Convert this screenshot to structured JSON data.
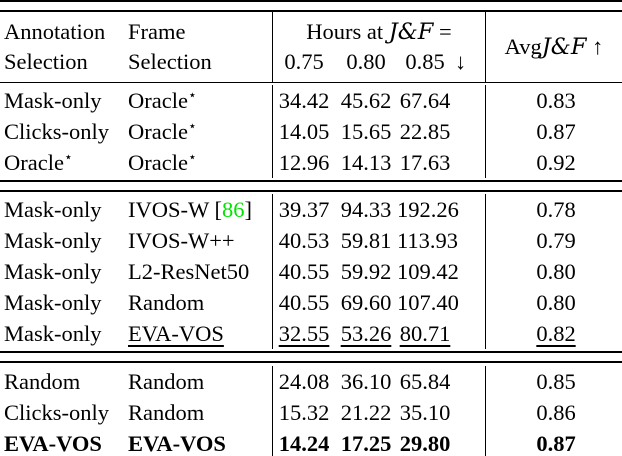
{
  "header": {
    "annotation_l1": "Annotation",
    "annotation_l2": "Selection",
    "frame_l1": "Frame",
    "frame_l2": "Selection",
    "hours_prefix": "Hours at ",
    "jf": "J&F",
    "hours_suffix": " =",
    "thresholds": {
      "t1": "0.75",
      "t2": "0.80",
      "t3": "0.85"
    },
    "down_arrow": "↓",
    "avg_prefix": "Avg ",
    "avg_jf": "J&F",
    "up_arrow": "↑"
  },
  "colors": {
    "cite_green": "#00e400",
    "text": "#000000",
    "background": "#ffffff"
  },
  "icons": {
    "star_superscript": "⋆"
  },
  "blocks": [
    {
      "rows": [
        {
          "annotation": "Mask-only",
          "frame": "Oracle",
          "frame_sup": "⋆",
          "h1": "34.42",
          "h2": "45.62",
          "h3": "67.64",
          "avg": "0.83"
        },
        {
          "annotation": "Clicks-only",
          "frame": "Oracle",
          "frame_sup": "⋆",
          "h1": "14.05",
          "h2": "15.65",
          "h3": "22.85",
          "avg": "0.87"
        },
        {
          "annotation": "Oracle",
          "annotation_sup": "⋆",
          "frame": "Oracle",
          "frame_sup": "⋆",
          "h1": "12.96",
          "h2": "14.13",
          "h3": "17.63",
          "avg": "0.92"
        }
      ]
    },
    {
      "rows": [
        {
          "annotation": "Mask-only",
          "frame": "IVOS-W",
          "cite_l": " [",
          "cite_n": "86",
          "cite_r": "]",
          "h1": "39.37",
          "h2": "94.33",
          "h3": "192.26",
          "avg": "0.78"
        },
        {
          "annotation": "Mask-only",
          "frame": "IVOS-W++",
          "h1": "40.53",
          "h2": "59.81",
          "h3": "113.93",
          "avg": "0.79"
        },
        {
          "annotation": "Mask-only",
          "frame": "L2-ResNet50",
          "h1": "40.55",
          "h2": "59.92",
          "h3": "109.42",
          "avg": "0.80"
        },
        {
          "annotation": "Mask-only",
          "frame": "Random",
          "h1": "40.55",
          "h2": "69.60",
          "h3": "107.40",
          "avg": "0.80"
        },
        {
          "annotation": "Mask-only",
          "frame": "EVA-VOS",
          "h1": "32.55",
          "h2": "53.26",
          "h3": "80.71",
          "avg": "0.82"
        }
      ]
    },
    {
      "rows": [
        {
          "annotation": "Random",
          "frame": "Random",
          "h1": "24.08",
          "h2": "36.10",
          "h3": "65.84",
          "avg": "0.85"
        },
        {
          "annotation": "Clicks-only",
          "frame": "Random",
          "h1": "15.32",
          "h2": "21.22",
          "h3": "35.10",
          "avg": "0.86"
        },
        {
          "annotation": "EVA-VOS",
          "frame": "EVA-VOS",
          "h1": "14.24",
          "h2": "17.25",
          "h3": "29.80",
          "avg": "0.87"
        }
      ]
    }
  ]
}
